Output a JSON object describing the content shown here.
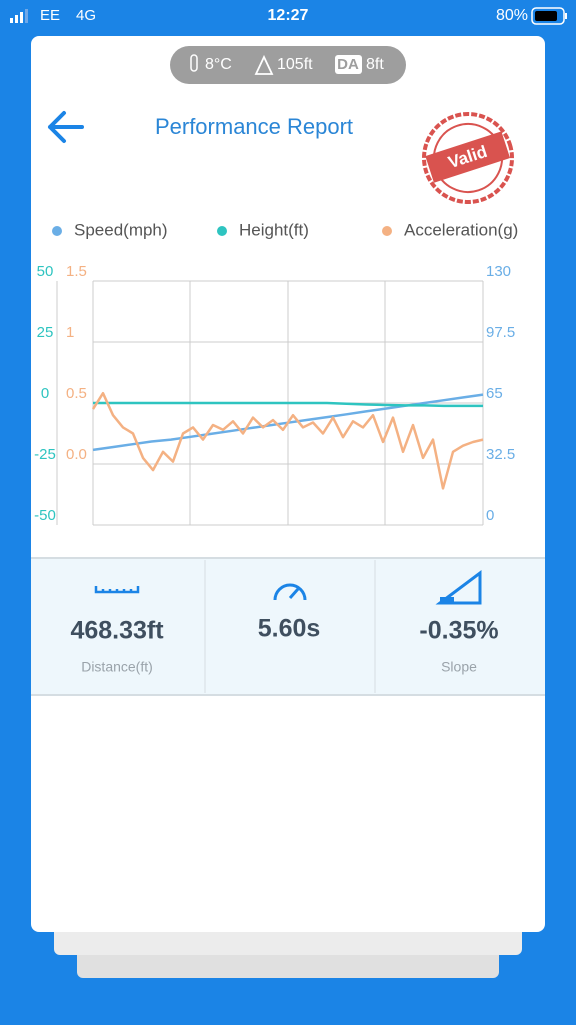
{
  "status_bar": {
    "carrier": "EE",
    "network": "4G",
    "time": "12:27",
    "battery": "80%"
  },
  "conditions": {
    "temperature": "8°C",
    "altitude": "105ft",
    "da_label": "DA",
    "density_altitude": "8ft"
  },
  "header": {
    "title": "Performance Report",
    "stamp": "Valid"
  },
  "chart_data": {
    "type": "line",
    "grid": true,
    "ylim": [
      -50,
      50
    ],
    "yticks": [
      50,
      25,
      0,
      -25,
      -50
    ],
    "y2lim": [
      0,
      130
    ],
    "y2ticks": [
      130,
      97.5,
      65,
      32.5,
      0
    ],
    "y3lim": [
      -0.5,
      1.5
    ],
    "y3ticks": [
      1.5,
      1,
      0.5,
      {
        "value": 0,
        "label": "0.0"
      }
    ],
    "series": [
      {
        "name": "Speed(mph)",
        "color": "#6aaee6",
        "axis": "y2",
        "values": [
          40,
          41.5,
          43,
          44.5,
          45.5,
          47,
          48.5,
          50,
          51.5,
          53,
          54.5,
          56,
          57.5,
          59,
          60.5,
          62,
          63.5,
          65,
          66.5,
          68,
          69.5
        ]
      },
      {
        "name": "Height(ft)",
        "color": "#2ec4c0",
        "axis": "y",
        "values": [
          0,
          0,
          0,
          0,
          0,
          0,
          0,
          0,
          0,
          0,
          0,
          0,
          0,
          -0.3,
          -0.6,
          -0.8,
          -1,
          -1,
          -1.2,
          -1.2,
          -1.2
        ]
      },
      {
        "name": "Acceleration(g)",
        "color": "#f4b183",
        "axis": "y3",
        "values": [
          0.45,
          0.58,
          0.4,
          0.3,
          0.25,
          0.05,
          -0.05,
          0.1,
          0.02,
          0.25,
          0.3,
          0.2,
          0.32,
          0.28,
          0.35,
          0.25,
          0.38,
          0.3,
          0.36,
          0.28,
          0.4,
          0.3,
          0.34,
          0.25,
          0.38,
          0.22,
          0.35,
          0.3,
          0.4,
          0.18,
          0.38,
          0.1,
          0.32,
          0.05,
          0.2,
          -0.2,
          0.1,
          0.15,
          0.18,
          0.2
        ]
      }
    ]
  },
  "stats": [
    {
      "value": "468.33ft",
      "label": "Distance(ft)"
    },
    {
      "value": "5.60s"
    },
    {
      "value": "-0.35%",
      "label": "Slope"
    }
  ]
}
